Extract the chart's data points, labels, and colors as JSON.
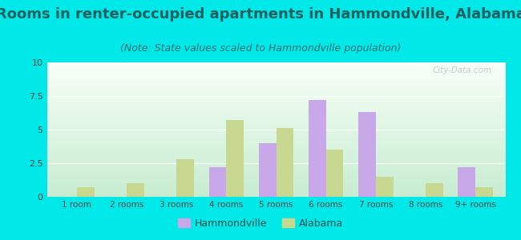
{
  "title": "Rooms in renter-occupied apartments in Hammondville, Alabama",
  "subtitle": "(Note: State values scaled to Hammondville population)",
  "categories": [
    "1 room",
    "2 rooms",
    "3 rooms",
    "4 rooms",
    "5 rooms",
    "6 rooms",
    "7 rooms",
    "8 rooms",
    "9+ rooms"
  ],
  "hammondville": [
    0,
    0,
    0,
    2.2,
    4.0,
    7.2,
    6.3,
    0,
    2.2
  ],
  "alabama": [
    0.7,
    1.0,
    2.8,
    5.7,
    5.1,
    3.5,
    1.5,
    1.0,
    0.7
  ],
  "hammondville_color": "#c8a8e8",
  "alabama_color": "#c8d890",
  "ylim": [
    0,
    10
  ],
  "yticks": [
    0,
    2.5,
    5,
    7.5,
    10
  ],
  "ytick_labels": [
    "0",
    "2.5",
    "5",
    "7.5",
    "10"
  ],
  "background_color": "#00e8e8",
  "title_color": "#1a6060",
  "subtitle_color": "#2a7070",
  "title_fontsize": 13,
  "subtitle_fontsize": 9,
  "watermark": "City-Data.com",
  "bar_width": 0.35,
  "legend_hammondville": "Hammondville",
  "legend_alabama": "Alabama"
}
